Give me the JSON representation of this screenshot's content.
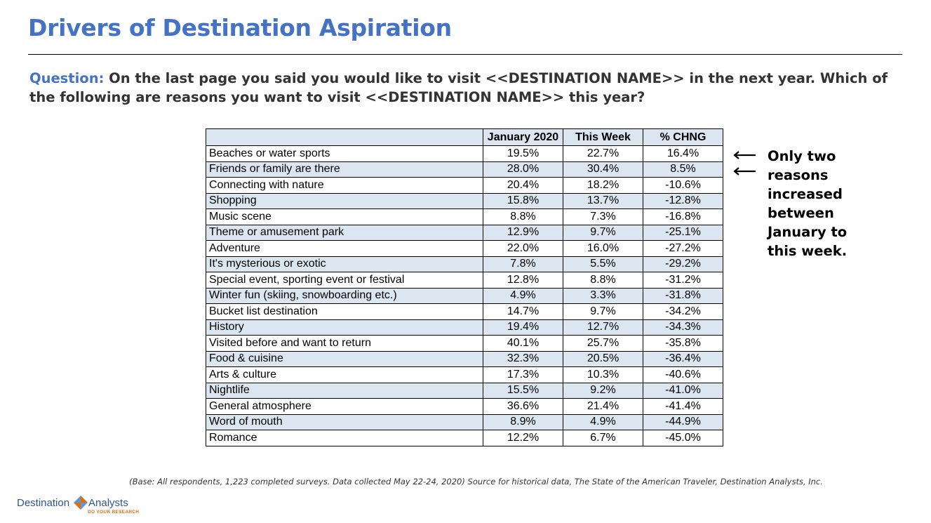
{
  "title": "Drivers of Destination Aspiration",
  "question": {
    "label": "Question:",
    "text": " On the last page you said you would like to visit <<DESTINATION NAME>> in the next year. Which of the following are reasons you want to visit <<DESTINATION NAME>> this year?"
  },
  "table": {
    "headers": [
      "",
      "January 2020",
      "This Week",
      "% CHNG"
    ],
    "rows": [
      {
        "label": "Beaches or water sports",
        "jan": "19.5%",
        "week": "22.7%",
        "chng": "16.4%"
      },
      {
        "label": "Friends or family are there",
        "jan": "28.0%",
        "week": "30.4%",
        "chng": "8.5%"
      },
      {
        "label": "Connecting with nature",
        "jan": "20.4%",
        "week": "18.2%",
        "chng": "-10.6%"
      },
      {
        "label": "Shopping",
        "jan": "15.8%",
        "week": "13.7%",
        "chng": "-12.8%"
      },
      {
        "label": "Music scene",
        "jan": "8.8%",
        "week": "7.3%",
        "chng": "-16.8%"
      },
      {
        "label": "Theme or amusement park",
        "jan": "12.9%",
        "week": "9.7%",
        "chng": "-25.1%"
      },
      {
        "label": "Adventure",
        "jan": "22.0%",
        "week": "16.0%",
        "chng": "-27.2%"
      },
      {
        "label": "It's mysterious or exotic",
        "jan": "7.8%",
        "week": "5.5%",
        "chng": "-29.2%"
      },
      {
        "label": "Special event, sporting event or festival",
        "jan": "12.8%",
        "week": "8.8%",
        "chng": "-31.2%"
      },
      {
        "label": "Winter fun (skiing, snowboarding etc.)",
        "jan": "4.9%",
        "week": "3.3%",
        "chng": "-31.8%"
      },
      {
        "label": "Bucket list destination",
        "jan": "14.7%",
        "week": "9.7%",
        "chng": "-34.2%"
      },
      {
        "label": "History",
        "jan": "19.4%",
        "week": "12.7%",
        "chng": "-34.3%"
      },
      {
        "label": "Visited before and want to return",
        "jan": "40.1%",
        "week": "25.7%",
        "chng": "-35.8%"
      },
      {
        "label": "Food & cuisine",
        "jan": "32.3%",
        "week": "20.5%",
        "chng": "-36.4%"
      },
      {
        "label": "Arts & culture",
        "jan": "17.3%",
        "week": "10.3%",
        "chng": "-40.6%"
      },
      {
        "label": "Nightlife",
        "jan": "15.5%",
        "week": "9.2%",
        "chng": "-41.0%"
      },
      {
        "label": "General atmosphere",
        "jan": "36.6%",
        "week": "21.4%",
        "chng": "-41.4%"
      },
      {
        "label": "Word of mouth",
        "jan": "8.9%",
        "week": "4.9%",
        "chng": "-44.9%"
      },
      {
        "label": "Romance",
        "jan": "12.2%",
        "week": "6.7%",
        "chng": "-45.0%"
      }
    ]
  },
  "annotation": {
    "lines": [
      "Only two",
      "reasons",
      "increased",
      "between",
      "January to",
      "this week."
    ]
  },
  "footnote": "(Base: All respondents, 1,223 completed surveys. Data collected May 22-24, 2020) Source for historical data, The State of the American Traveler, Destination Analysts, Inc.",
  "logo": {
    "word1": "Destination",
    "word2": "Analysts",
    "tagline": "DO YOUR RESEARCH",
    "colors": {
      "blue": "#2f5597",
      "orange": "#e46c0a",
      "light_blue": "#5b9bd5"
    }
  },
  "colors": {
    "title": "#4472c4",
    "header_fill": "#dce6f1",
    "stripe_fill": "#dce6f1"
  }
}
